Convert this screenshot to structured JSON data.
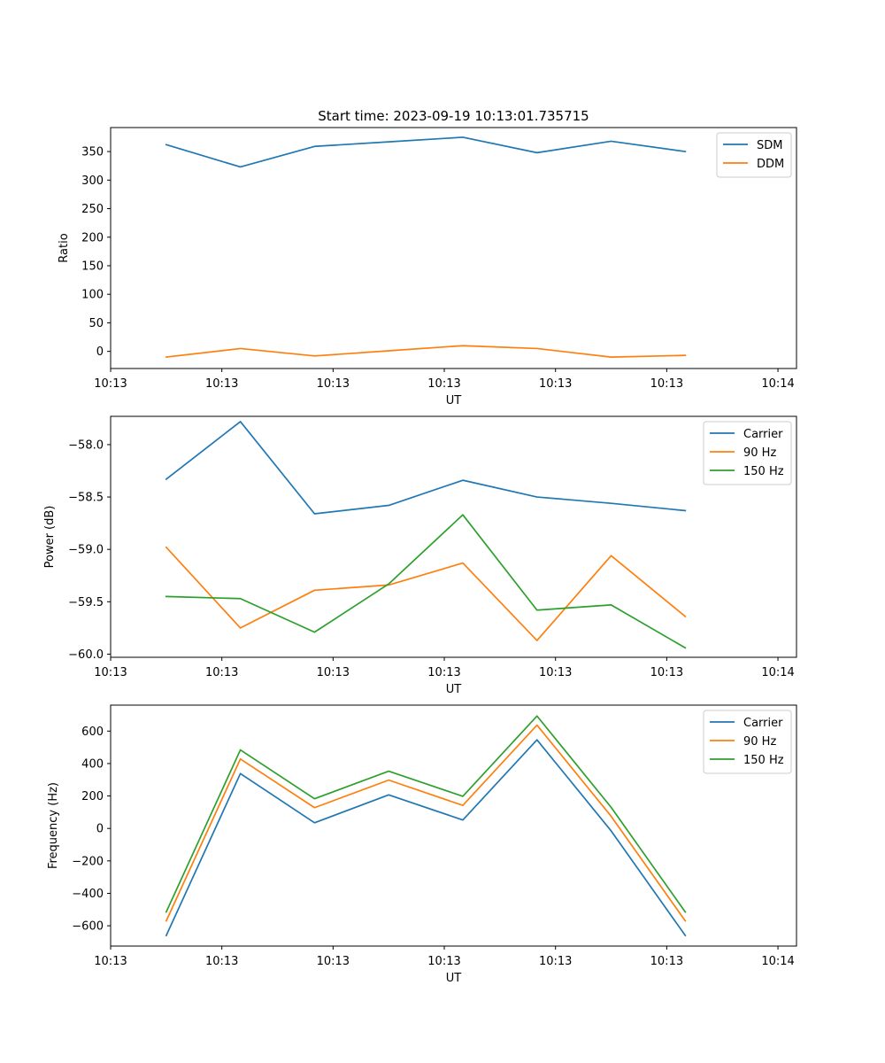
{
  "figure_title": "Start time: 2023-09-19 10:13:01.735715",
  "colors": {
    "blue": "#1f77b4",
    "orange": "#ff7f0e",
    "green": "#2ca02c"
  },
  "chart_data": [
    {
      "type": "line",
      "title": "Start time: 2023-09-19 10:13:01.735715",
      "xlabel": "UT",
      "ylabel": "Ratio",
      "xlim": [
        -0.75,
        8.5
      ],
      "ylim": [
        -30,
        392
      ],
      "x": [
        0,
        1,
        2,
        3,
        4,
        5,
        6,
        7
      ],
      "xticks": [
        -0.75,
        0.75,
        2.25,
        3.75,
        5.25,
        6.75,
        8.25
      ],
      "xtick_labels": [
        "10:13",
        "10:13",
        "10:13",
        "10:13",
        "10:13",
        "10:13",
        "10:14"
      ],
      "yticks": [
        0,
        50,
        100,
        150,
        200,
        250,
        300,
        350
      ],
      "ytick_labels": [
        "0",
        "50",
        "100",
        "150",
        "200",
        "250",
        "300",
        "350"
      ],
      "legend_position": "top-right",
      "series": [
        {
          "name": "SDM",
          "color": "#1f77b4",
          "values": [
            362,
            323,
            359,
            367,
            375,
            348,
            368,
            350
          ]
        },
        {
          "name": "DDM",
          "color": "#ff7f0e",
          "values": [
            -10,
            5,
            -8,
            1,
            10,
            5,
            -10,
            -7
          ]
        }
      ]
    },
    {
      "type": "line",
      "title": "",
      "xlabel": "UT",
      "ylabel": "Power (dB)",
      "xlim": [
        -0.75,
        8.5
      ],
      "ylim": [
        -60.03,
        -57.73
      ],
      "x": [
        0,
        1,
        2,
        3,
        4,
        5,
        6,
        7
      ],
      "xticks": [
        -0.75,
        0.75,
        2.25,
        3.75,
        5.25,
        6.75,
        8.25
      ],
      "xtick_labels": [
        "10:13",
        "10:13",
        "10:13",
        "10:13",
        "10:13",
        "10:13",
        "10:14"
      ],
      "yticks": [
        -60.0,
        -59.5,
        -59.0,
        -58.5,
        -58.0
      ],
      "ytick_labels": [
        "−60.0",
        "−59.5",
        "−59.0",
        "−58.5",
        "−58.0"
      ],
      "legend_position": "top-right",
      "series": [
        {
          "name": "Carrier",
          "color": "#1f77b4",
          "values": [
            -58.33,
            -57.78,
            -58.66,
            -58.58,
            -58.34,
            -58.5,
            -58.56,
            -58.63
          ]
        },
        {
          "name": "90 Hz",
          "color": "#ff7f0e",
          "values": [
            -58.98,
            -59.75,
            -59.39,
            -59.34,
            -59.13,
            -59.87,
            -59.06,
            -59.64
          ]
        },
        {
          "name": "150 Hz",
          "color": "#2ca02c",
          "values": [
            -59.45,
            -59.47,
            -59.79,
            -59.33,
            -58.67,
            -59.58,
            -59.53,
            -59.94
          ]
        }
      ]
    },
    {
      "type": "line",
      "title": "",
      "xlabel": "UT",
      "ylabel": "Frequency (Hz)",
      "xlim": [
        -0.75,
        8.5
      ],
      "ylim": [
        -725,
        760
      ],
      "x": [
        0,
        1,
        2,
        3,
        4,
        5,
        6,
        7
      ],
      "xticks": [
        -0.75,
        0.75,
        2.25,
        3.75,
        5.25,
        6.75,
        8.25
      ],
      "xtick_labels": [
        "10:13",
        "10:13",
        "10:13",
        "10:13",
        "10:13",
        "10:13",
        "10:14"
      ],
      "yticks": [
        -600,
        -400,
        -200,
        0,
        200,
        400,
        600
      ],
      "ytick_labels": [
        "−600",
        "−400",
        "−200",
        "0",
        "200",
        "400",
        "600"
      ],
      "legend_position": "top-right",
      "series": [
        {
          "name": "Carrier",
          "color": "#1f77b4",
          "values": [
            -660,
            338,
            35,
            207,
            52,
            546,
            -15,
            -660
          ]
        },
        {
          "name": "90 Hz",
          "color": "#ff7f0e",
          "values": [
            -570,
            428,
            128,
            298,
            142,
            637,
            75,
            -570
          ]
        },
        {
          "name": "150 Hz",
          "color": "#2ca02c",
          "values": [
            -515,
            484,
            183,
            353,
            198,
            693,
            130,
            -515
          ]
        }
      ]
    }
  ]
}
